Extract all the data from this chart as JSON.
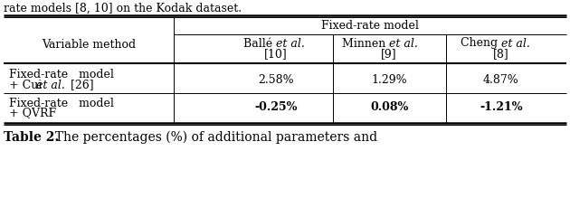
{
  "top_text": "rate models [8, 10] on the Kodak dataset.",
  "caption_bold": "Table 2.",
  "caption_rest": "  The percentages (%) of additional parameters and",
  "header_group": "Fixed-rate model",
  "row_label_col": "Variable method",
  "data": [
    [
      "2.58%",
      "1.29%",
      "4.87%"
    ],
    [
      "-0.25%",
      "0.08%",
      "-1.21%"
    ]
  ],
  "bold_rows": [
    1
  ],
  "bg_color": "#ffffff",
  "text_color": "#000000",
  "line_color": "#000000",
  "font_size": 9.0
}
